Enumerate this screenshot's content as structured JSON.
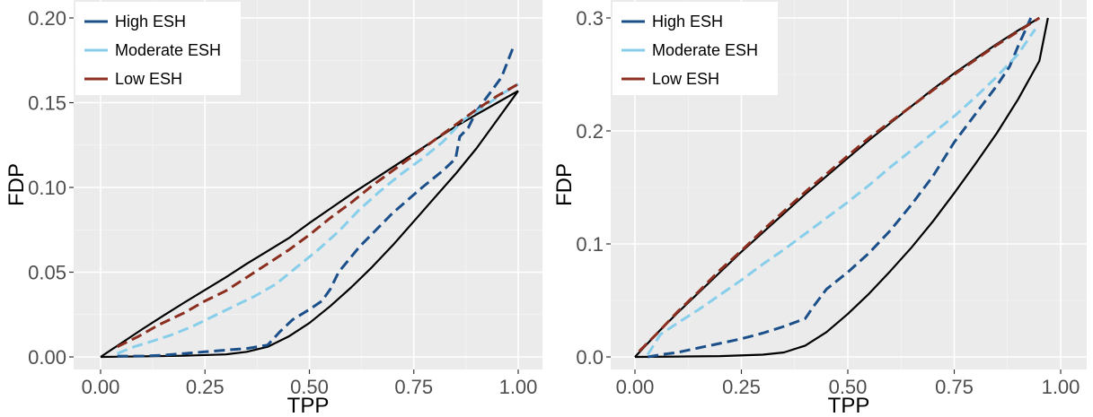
{
  "chart_data": [
    {
      "type": "line",
      "xlabel": "TPP",
      "ylabel": "FDP",
      "xlim": [
        0,
        1
      ],
      "ylim": [
        0,
        0.2
      ],
      "x_ticks": [
        0,
        0.25,
        0.5,
        0.75,
        1
      ],
      "x_tick_labels": [
        "0.00",
        "0.25",
        "0.50",
        "0.75",
        "1.00"
      ],
      "y_ticks": [
        0,
        0.05,
        0.1,
        0.15,
        0.2
      ],
      "y_tick_labels": [
        "0.00",
        "0.05",
        "0.10",
        "0.15",
        "0.20"
      ],
      "grid": true,
      "legend_position": "top-left",
      "legend": [
        "High ESH",
        "Moderate ESH",
        "Low ESH"
      ],
      "colors": {
        "High ESH": "#1b4f8a",
        "Moderate ESH": "#87ceeb",
        "Low ESH": "#8b2e1f",
        "boundary": "#000000"
      },
      "series": [
        {
          "name": "High ESH",
          "style": "dashed",
          "points": [
            [
              0.04,
              0.0005
            ],
            [
              0.1,
              0.0005
            ],
            [
              0.15,
              0.001
            ],
            [
              0.2,
              0.002
            ],
            [
              0.25,
              0.003
            ],
            [
              0.3,
              0.004
            ],
            [
              0.35,
              0.005
            ],
            [
              0.4,
              0.007
            ],
            [
              0.43,
              0.015
            ],
            [
              0.46,
              0.022
            ],
            [
              0.5,
              0.028
            ],
            [
              0.53,
              0.033
            ],
            [
              0.55,
              0.04
            ],
            [
              0.57,
              0.05
            ],
            [
              0.62,
              0.065
            ],
            [
              0.7,
              0.085
            ],
            [
              0.77,
              0.1
            ],
            [
              0.82,
              0.11
            ],
            [
              0.85,
              0.117
            ],
            [
              0.86,
              0.13
            ],
            [
              0.88,
              0.135
            ],
            [
              0.9,
              0.145
            ],
            [
              0.93,
              0.155
            ],
            [
              0.96,
              0.165
            ],
            [
              0.99,
              0.184
            ]
          ]
        },
        {
          "name": "Moderate ESH",
          "style": "dashed",
          "points": [
            [
              0.04,
              0.002
            ],
            [
              0.08,
              0.006
            ],
            [
              0.12,
              0.009
            ],
            [
              0.17,
              0.013
            ],
            [
              0.22,
              0.018
            ],
            [
              0.27,
              0.024
            ],
            [
              0.32,
              0.03
            ],
            [
              0.37,
              0.036
            ],
            [
              0.42,
              0.043
            ],
            [
              0.47,
              0.053
            ],
            [
              0.52,
              0.063
            ],
            [
              0.57,
              0.074
            ],
            [
              0.62,
              0.087
            ],
            [
              0.67,
              0.098
            ],
            [
              0.72,
              0.108
            ],
            [
              0.77,
              0.117
            ],
            [
              0.82,
              0.127
            ],
            [
              0.87,
              0.14
            ],
            [
              0.92,
              0.148
            ],
            [
              0.96,
              0.155
            ],
            [
              1.0,
              0.161
            ]
          ]
        },
        {
          "name": "Low ESH",
          "style": "dashed",
          "points": [
            [
              0.04,
              0.006
            ],
            [
              0.09,
              0.012
            ],
            [
              0.14,
              0.019
            ],
            [
              0.2,
              0.026
            ],
            [
              0.25,
              0.033
            ],
            [
              0.3,
              0.039
            ],
            [
              0.35,
              0.047
            ],
            [
              0.4,
              0.055
            ],
            [
              0.45,
              0.063
            ],
            [
              0.5,
              0.072
            ],
            [
              0.55,
              0.082
            ],
            [
              0.6,
              0.091
            ],
            [
              0.65,
              0.101
            ],
            [
              0.7,
              0.11
            ],
            [
              0.75,
              0.119
            ],
            [
              0.8,
              0.128
            ],
            [
              0.85,
              0.137
            ],
            [
              0.9,
              0.146
            ],
            [
              0.95,
              0.154
            ],
            [
              1.0,
              0.161
            ]
          ]
        },
        {
          "name": "",
          "style": "solid",
          "points": [
            [
              0,
              0
            ],
            [
              0.05,
              0.0082
            ],
            [
              0.1,
              0.0164
            ],
            [
              0.15,
              0.0243
            ],
            [
              0.2,
              0.032
            ],
            [
              0.25,
              0.0395
            ],
            [
              0.3,
              0.047
            ],
            [
              0.35,
              0.055
            ],
            [
              0.4,
              0.0625
            ],
            [
              0.45,
              0.07
            ],
            [
              0.5,
              0.079
            ],
            [
              0.55,
              0.0875
            ],
            [
              0.6,
              0.096
            ],
            [
              0.65,
              0.104
            ],
            [
              0.7,
              0.112
            ],
            [
              0.75,
              0.12
            ],
            [
              0.8,
              0.128
            ],
            [
              0.85,
              0.136
            ],
            [
              0.9,
              0.143
            ],
            [
              0.95,
              0.15
            ],
            [
              1.0,
              0.157
            ]
          ]
        },
        {
          "name": "",
          "style": "solid",
          "points": [
            [
              0,
              0
            ],
            [
              0.1,
              0.0003
            ],
            [
              0.2,
              0.0007
            ],
            [
              0.3,
              0.0015
            ],
            [
              0.35,
              0.003
            ],
            [
              0.4,
              0.006
            ],
            [
              0.45,
              0.012
            ],
            [
              0.5,
              0.02
            ],
            [
              0.55,
              0.03
            ],
            [
              0.6,
              0.041
            ],
            [
              0.65,
              0.053
            ],
            [
              0.7,
              0.066
            ],
            [
              0.75,
              0.08
            ],
            [
              0.8,
              0.094
            ],
            [
              0.85,
              0.108
            ],
            [
              0.9,
              0.123
            ],
            [
              0.95,
              0.14
            ],
            [
              1.0,
              0.157
            ]
          ]
        }
      ]
    },
    {
      "type": "line",
      "xlabel": "TPP",
      "ylabel": "FDP",
      "xlim": [
        0,
        1
      ],
      "ylim": [
        0,
        0.3
      ],
      "x_ticks": [
        0,
        0.25,
        0.5,
        0.75,
        1
      ],
      "x_tick_labels": [
        "0.00",
        "0.25",
        "0.50",
        "0.75",
        "1.00"
      ],
      "y_ticks": [
        0,
        0.1,
        0.2,
        0.3
      ],
      "y_tick_labels": [
        "0.0",
        "0.1",
        "0.2",
        "0.3"
      ],
      "grid": true,
      "legend_position": "top-left",
      "legend": [
        "High ESH",
        "Moderate ESH",
        "Low ESH"
      ],
      "colors": {
        "High ESH": "#1b4f8a",
        "Moderate ESH": "#87ceeb",
        "Low ESH": "#8b2e1f",
        "boundary": "#000000"
      },
      "series": [
        {
          "name": "High ESH",
          "style": "dashed",
          "points": [
            [
              0.03,
              0.0
            ],
            [
              0.06,
              0.002
            ],
            [
              0.1,
              0.004
            ],
            [
              0.15,
              0.008
            ],
            [
              0.2,
              0.012
            ],
            [
              0.25,
              0.016
            ],
            [
              0.3,
              0.021
            ],
            [
              0.35,
              0.027
            ],
            [
              0.4,
              0.034
            ],
            [
              0.42,
              0.045
            ],
            [
              0.45,
              0.06
            ],
            [
              0.5,
              0.075
            ],
            [
              0.55,
              0.092
            ],
            [
              0.6,
              0.112
            ],
            [
              0.65,
              0.135
            ],
            [
              0.7,
              0.16
            ],
            [
              0.75,
              0.19
            ],
            [
              0.8,
              0.215
            ],
            [
              0.85,
              0.24
            ],
            [
              0.88,
              0.257
            ],
            [
              0.9,
              0.275
            ],
            [
              0.93,
              0.3
            ]
          ]
        },
        {
          "name": "Moderate ESH",
          "style": "dashed",
          "points": [
            [
              0.03,
              0.002
            ],
            [
              0.06,
              0.02
            ],
            [
              0.1,
              0.03
            ],
            [
              0.15,
              0.042
            ],
            [
              0.2,
              0.055
            ],
            [
              0.25,
              0.068
            ],
            [
              0.3,
              0.082
            ],
            [
              0.35,
              0.095
            ],
            [
              0.4,
              0.109
            ],
            [
              0.45,
              0.123
            ],
            [
              0.5,
              0.137
            ],
            [
              0.55,
              0.152
            ],
            [
              0.6,
              0.168
            ],
            [
              0.65,
              0.183
            ],
            [
              0.7,
              0.198
            ],
            [
              0.75,
              0.213
            ],
            [
              0.8,
              0.23
            ],
            [
              0.85,
              0.248
            ],
            [
              0.9,
              0.268
            ],
            [
              0.94,
              0.29
            ]
          ]
        },
        {
          "name": "Low ESH",
          "style": "dashed",
          "points": [
            [
              0.01,
              0.005
            ],
            [
              0.05,
              0.02
            ],
            [
              0.1,
              0.04
            ],
            [
              0.15,
              0.058
            ],
            [
              0.2,
              0.077
            ],
            [
              0.25,
              0.094
            ],
            [
              0.3,
              0.112
            ],
            [
              0.35,
              0.129
            ],
            [
              0.4,
              0.146
            ],
            [
              0.45,
              0.162
            ],
            [
              0.5,
              0.178
            ],
            [
              0.55,
              0.194
            ],
            [
              0.6,
              0.208
            ],
            [
              0.65,
              0.222
            ],
            [
              0.7,
              0.236
            ],
            [
              0.75,
              0.25
            ],
            [
              0.8,
              0.263
            ],
            [
              0.85,
              0.276
            ],
            [
              0.9,
              0.288
            ],
            [
              0.95,
              0.3
            ]
          ]
        },
        {
          "name": "",
          "style": "solid",
          "points": [
            [
              0,
              0
            ],
            [
              0.03,
              0.012
            ],
            [
              0.06,
              0.024
            ],
            [
              0.1,
              0.039
            ],
            [
              0.15,
              0.057
            ],
            [
              0.2,
              0.075
            ],
            [
              0.25,
              0.093
            ],
            [
              0.3,
              0.11
            ],
            [
              0.35,
              0.127
            ],
            [
              0.4,
              0.144
            ],
            [
              0.45,
              0.16
            ],
            [
              0.5,
              0.176
            ],
            [
              0.55,
              0.192
            ],
            [
              0.6,
              0.207
            ],
            [
              0.65,
              0.222
            ],
            [
              0.7,
              0.237
            ],
            [
              0.75,
              0.251
            ],
            [
              0.8,
              0.264
            ],
            [
              0.85,
              0.277
            ],
            [
              0.9,
              0.289
            ],
            [
              0.95,
              0.3
            ]
          ]
        },
        {
          "name": "",
          "style": "solid",
          "points": [
            [
              0,
              0
            ],
            [
              0.1,
              0.0003
            ],
            [
              0.2,
              0.0007
            ],
            [
              0.3,
              0.002
            ],
            [
              0.35,
              0.004
            ],
            [
              0.4,
              0.01
            ],
            [
              0.45,
              0.022
            ],
            [
              0.5,
              0.038
            ],
            [
              0.55,
              0.056
            ],
            [
              0.6,
              0.076
            ],
            [
              0.65,
              0.097
            ],
            [
              0.7,
              0.12
            ],
            [
              0.75,
              0.145
            ],
            [
              0.8,
              0.171
            ],
            [
              0.85,
              0.198
            ],
            [
              0.9,
              0.228
            ],
            [
              0.95,
              0.262
            ],
            [
              0.97,
              0.3
            ]
          ]
        }
      ]
    }
  ]
}
